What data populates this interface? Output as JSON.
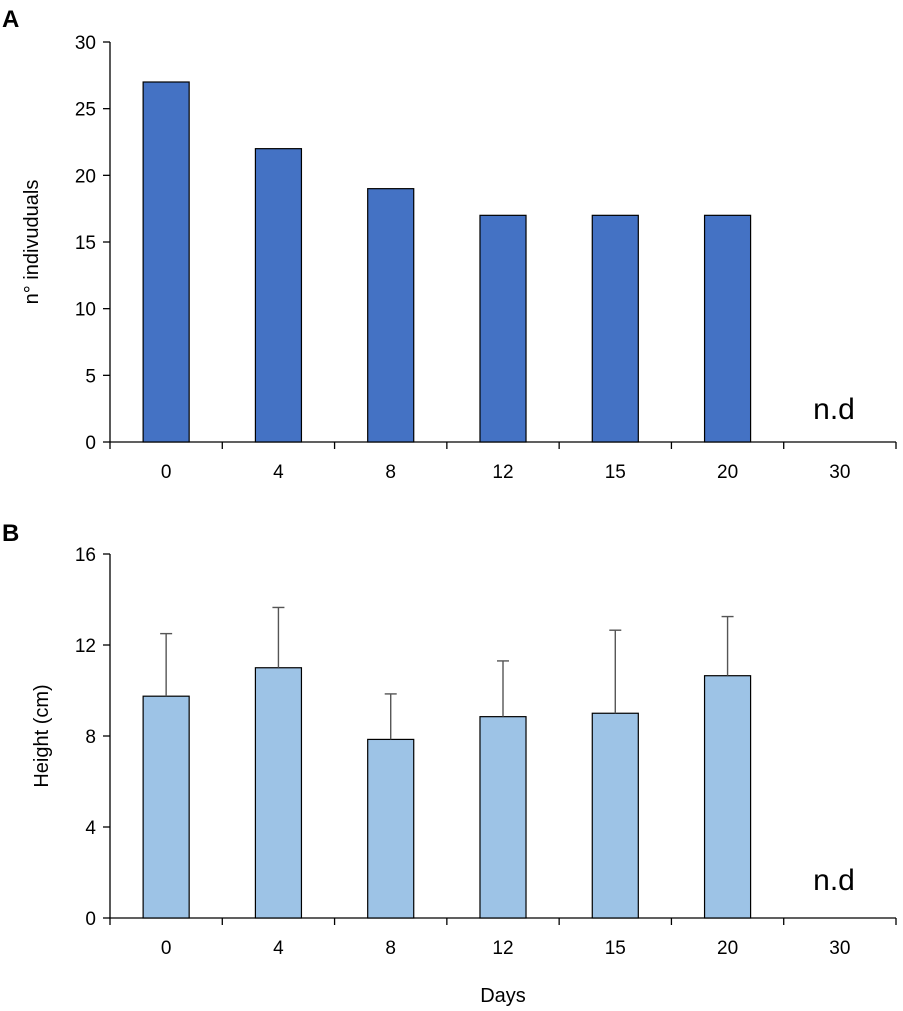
{
  "chart_data": [
    {
      "panel": "A",
      "type": "bar",
      "title": "",
      "xlabel": "",
      "ylabel": "n° indivuduals",
      "categories": [
        "0",
        "4",
        "8",
        "12",
        "15",
        "20",
        "30"
      ],
      "values": [
        27,
        22,
        19,
        17,
        17,
        17,
        null
      ],
      "ylim": [
        0,
        30
      ],
      "yticks": [
        0,
        5,
        10,
        15,
        20,
        25,
        30
      ],
      "annotation": "n.d",
      "bar_color": "#4472C4"
    },
    {
      "panel": "B",
      "type": "bar",
      "title": "",
      "xlabel": "Days",
      "ylabel": "Height (cm)",
      "categories": [
        "0",
        "4",
        "8",
        "12",
        "15",
        "20",
        "30"
      ],
      "values": [
        9.75,
        11.0,
        7.85,
        8.85,
        9.0,
        10.65,
        null
      ],
      "errors": [
        2.75,
        2.65,
        2.0,
        2.45,
        3.65,
        2.6,
        null
      ],
      "ylim": [
        0,
        16
      ],
      "yticks": [
        0,
        4,
        8,
        12,
        16
      ],
      "annotation": "n.d",
      "bar_color": "#9DC3E6"
    }
  ]
}
